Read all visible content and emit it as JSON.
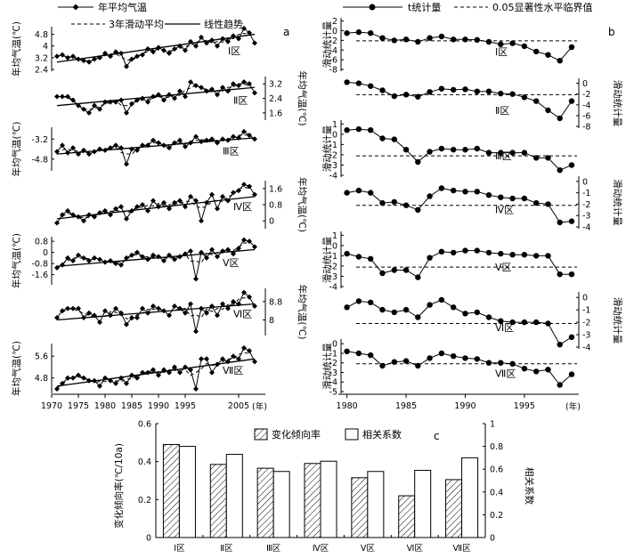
{
  "chart_data": [
    {
      "panel": "a",
      "type": "line",
      "legend": {
        "annual": "年平均气温",
        "moving": "3年滑动平均",
        "trend": "线性趋势"
      },
      "xaxis": {
        "ticks": [
          1970,
          1975,
          1980,
          1985,
          1990,
          1995,
          2005
        ],
        "unit_label": "(年)",
        "range": [
          1970,
          2010
        ]
      },
      "years": [
        1971,
        1972,
        1973,
        1974,
        1975,
        1976,
        1977,
        1978,
        1979,
        1980,
        1981,
        1982,
        1983,
        1984,
        1985,
        1986,
        1987,
        1988,
        1989,
        1990,
        1991,
        1992,
        1993,
        1994,
        1995,
        1996,
        1997,
        1998,
        1999,
        2000,
        2001,
        2002,
        2003,
        2004,
        2005,
        2006,
        2007,
        2008
      ],
      "regions": [
        {
          "name": "Ⅰ区",
          "ylabel": "年均气温(℃)",
          "ylabel_side": "left",
          "yticks": [
            "2.4",
            "3.2",
            "4",
            "4.8"
          ],
          "ylim": [
            2.4,
            5.2
          ],
          "values": [
            3.3,
            3.4,
            3.2,
            3.3,
            3.1,
            3.0,
            2.9,
            3.1,
            3.2,
            3.5,
            3.3,
            3.6,
            3.5,
            2.6,
            3.1,
            3.3,
            3.4,
            3.8,
            3.6,
            3.9,
            3.7,
            3.5,
            3.8,
            4.0,
            3.7,
            4.3,
            4.0,
            4.6,
            4.2,
            4.4,
            4.0,
            4.5,
            4.3,
            4.7,
            4.5,
            5.2,
            4.9,
            4.2
          ],
          "trend": [
            2.9,
            4.8
          ]
        },
        {
          "name": "Ⅱ区",
          "ylabel": "年均气温(℃)",
          "ylabel_side": "right",
          "yticks": [
            "1.6",
            "2.4",
            "3.2"
          ],
          "ylim": [
            1.3,
            3.5
          ],
          "values": [
            2.5,
            2.5,
            2.5,
            2.3,
            2.0,
            1.8,
            1.6,
            2.0,
            1.8,
            2.2,
            2.2,
            2.2,
            2.3,
            1.6,
            2.1,
            2.3,
            2.4,
            2.2,
            2.5,
            2.6,
            2.3,
            2.6,
            2.4,
            2.8,
            2.5,
            3.3,
            3.1,
            3.0,
            2.8,
            2.9,
            2.6,
            3.0,
            2.8,
            3.2,
            3.1,
            3.3,
            3.2,
            2.7
          ],
          "trend": [
            2.0,
            3.0
          ]
        },
        {
          "name": "Ⅲ区",
          "ylabel": "年均气温(℃)",
          "ylabel_side": "left",
          "yticks": [
            "-4.8",
            "-3.2"
          ],
          "ylim": [
            -5.6,
            -2.4
          ],
          "values": [
            -4.2,
            -3.7,
            -4.3,
            -3.9,
            -4.4,
            -4.1,
            -4.4,
            -4.2,
            -4.0,
            -4.1,
            -3.9,
            -3.7,
            -3.9,
            -5.2,
            -4.0,
            -4.1,
            -3.7,
            -3.7,
            -3.3,
            -3.5,
            -3.7,
            -3.9,
            -3.5,
            -3.3,
            -3.8,
            -3.5,
            -3.0,
            -3.4,
            -3.3,
            -3.2,
            -3.5,
            -3.2,
            -3.3,
            -3.0,
            -3.1,
            -2.6,
            -2.9,
            -3.2
          ],
          "trend": [
            -4.4,
            -3.1
          ]
        },
        {
          "name": "Ⅳ区",
          "ylabel": "年均气温(℃)",
          "ylabel_side": "right",
          "yticks": [
            "0",
            "0.8",
            "1.6"
          ],
          "ylim": [
            -0.3,
            1.9
          ],
          "values": [
            -0.1,
            0.3,
            0.5,
            0.3,
            0.2,
            0.0,
            0.3,
            0.2,
            0.4,
            0.5,
            0.3,
            0.6,
            0.7,
            0.1,
            0.5,
            0.7,
            0.8,
            0.5,
            1.0,
            0.7,
            0.9,
            0.6,
            0.9,
            1.0,
            0.7,
            1.2,
            1.0,
            0.0,
            0.9,
            1.3,
            0.6,
            1.2,
            1.0,
            1.4,
            1.5,
            1.8,
            1.7,
            1.3
          ],
          "trend": [
            0.1,
            1.2
          ]
        },
        {
          "name": "Ⅴ区",
          "ylabel": "年均气温(℃)",
          "ylabel_side": "left",
          "yticks": [
            "-1.6",
            "-0.8",
            "0",
            "0.8"
          ],
          "ylim": [
            -2.2,
            1.0
          ],
          "values": [
            -1.1,
            -0.9,
            -0.4,
            -0.6,
            -0.2,
            -0.4,
            -0.6,
            -0.4,
            -0.5,
            -0.7,
            -0.6,
            -0.8,
            -0.9,
            -0.4,
            -0.2,
            0.0,
            -0.3,
            -0.5,
            -0.2,
            -0.3,
            -0.6,
            -0.2,
            -0.5,
            -0.3,
            -0.1,
            0.1,
            -1.9,
            0.0,
            -0.4,
            0.2,
            -0.3,
            0.1,
            0.2,
            -0.1,
            0.3,
            0.9,
            0.8,
            0.4
          ],
          "trend": [
            -1.0,
            0.2
          ]
        },
        {
          "name": "Ⅵ区",
          "ylabel": "年均气温(℃)",
          "ylabel_side": "right",
          "yticks": [
            "8",
            "8.8"
          ],
          "ylim": [
            7.4,
            9.3
          ],
          "values": [
            8.1,
            8.4,
            8.5,
            8.5,
            8.5,
            8.1,
            8.3,
            8.2,
            7.9,
            8.4,
            8.2,
            8.5,
            8.3,
            7.8,
            8.1,
            8.1,
            8.5,
            8.3,
            8.6,
            8.5,
            8.4,
            8.2,
            8.6,
            8.5,
            8.3,
            8.7,
            7.5,
            8.5,
            8.3,
            8.6,
            8.2,
            8.7,
            8.5,
            8.8,
            8.7,
            9.2,
            9.0,
            8.6
          ],
          "trend": [
            8.0,
            8.7
          ]
        },
        {
          "name": "Ⅶ区",
          "ylabel": "年均气温(℃)",
          "ylabel_side": "left",
          "yticks": [
            "4.8",
            "5.6"
          ],
          "ylim": [
            4.3,
            6.0
          ],
          "values": [
            4.4,
            4.6,
            4.8,
            4.8,
            4.9,
            4.8,
            4.7,
            4.7,
            4.5,
            4.8,
            4.7,
            4.6,
            4.8,
            4.6,
            4.9,
            4.8,
            5.0,
            5.0,
            5.1,
            4.9,
            5.1,
            5.0,
            5.2,
            5.0,
            5.2,
            5.1,
            4.4,
            5.5,
            5.5,
            5.0,
            5.3,
            5.5,
            5.4,
            5.6,
            5.5,
            5.9,
            5.8,
            5.4
          ],
          "trend": [
            4.5,
            5.5
          ]
        }
      ]
    },
    {
      "panel": "b",
      "type": "line",
      "legend": {
        "stat": "t统计量",
        "critical": "0.05显著性水平临界值"
      },
      "xaxis": {
        "ticks": [
          1980,
          1985,
          1990,
          1995
        ],
        "unit_label": "(年)",
        "range": [
          1979.5,
          1999.6
        ]
      },
      "years": [
        1980,
        1981,
        1982,
        1983,
        1984,
        1985,
        1986,
        1987,
        1988,
        1989,
        1990,
        1991,
        1992,
        1993,
        1994,
        1995,
        1996,
        1997,
        1998,
        1999
      ],
      "critical_value": -2.1,
      "regions": [
        {
          "name": "Ⅰ区",
          "ylabel": "滑动统计量",
          "ylabel_side": "left",
          "yticks": [
            "2",
            "0",
            "-2",
            "-4",
            "-6",
            "-8"
          ],
          "ylim": [
            -8,
            2.3
          ],
          "values": [
            -0.5,
            -0.3,
            -0.5,
            -1.5,
            -2.0,
            -1.8,
            -2.3,
            -1.5,
            -1.2,
            -1.8,
            -1.8,
            -1.9,
            -2.3,
            -2.8,
            -2.6,
            -3.2,
            -4.3,
            -5.0,
            -6.2,
            -3.4
          ]
        },
        {
          "name": "Ⅱ区",
          "ylabel": "滑动统计量",
          "ylabel_side": "right",
          "yticks": [
            "0",
            "-2",
            "-4",
            "-6",
            "-8"
          ],
          "ylim": [
            -8,
            0.6
          ],
          "values": [
            0.2,
            0.0,
            -0.5,
            -1.3,
            -2.4,
            -2.1,
            -2.5,
            -1.6,
            -1.0,
            -1.2,
            -1.1,
            -1.5,
            -1.5,
            -1.9,
            -2.0,
            -2.6,
            -3.3,
            -5.0,
            -6.5,
            -3.3
          ]
        },
        {
          "name": "Ⅲ区",
          "ylabel": "滑动统计量",
          "ylabel_side": "left",
          "yticks": [
            "1",
            "0",
            "-1",
            "-2",
            "-3",
            "-4"
          ],
          "ylim": [
            -4,
            1.2
          ],
          "values": [
            0.4,
            0.5,
            0.4,
            -0.4,
            -0.5,
            -1.5,
            -2.7,
            -1.7,
            -1.4,
            -1.5,
            -1.5,
            -1.4,
            -1.8,
            -1.8,
            -1.8,
            -1.8,
            -2.3,
            -2.3,
            -3.5,
            -3.0
          ]
        },
        {
          "name": "Ⅳ区",
          "ylabel": "滑动统计量",
          "ylabel_side": "right",
          "yticks": [
            "0",
            "-1",
            "-2",
            "-3",
            "-4"
          ],
          "ylim": [
            -4,
            0.3
          ],
          "values": [
            -1.0,
            -0.8,
            -1.0,
            -1.9,
            -1.8,
            -2.1,
            -2.5,
            -1.3,
            -0.6,
            -0.8,
            -0.9,
            -0.9,
            -1.2,
            -1.4,
            -1.5,
            -1.5,
            -1.9,
            -2.0,
            -3.6,
            -3.5
          ]
        },
        {
          "name": "Ⅴ区",
          "ylabel": "滑动统计量",
          "ylabel_side": "left",
          "yticks": [
            "1",
            "0",
            "-1",
            "-2",
            "-3",
            "-4"
          ],
          "ylim": [
            -4,
            1.2
          ],
          "values": [
            -0.8,
            -1.1,
            -1.3,
            -2.7,
            -2.4,
            -2.4,
            -3.1,
            -1.2,
            -0.6,
            -0.7,
            -0.5,
            -0.5,
            -0.7,
            -0.8,
            -0.9,
            -0.9,
            -1.0,
            -1.0,
            -2.8,
            -2.8
          ]
        },
        {
          "name": "Ⅵ区",
          "ylabel": "滑动统计量",
          "ylabel_side": "right",
          "yticks": [
            "0",
            "-1",
            "-2",
            "-3",
            "-4"
          ],
          "ylim": [
            -4,
            0.3
          ],
          "values": [
            -0.8,
            -0.3,
            -0.4,
            -1.0,
            -1.2,
            -1.0,
            -1.6,
            -0.6,
            -0.2,
            -0.8,
            -1.3,
            -1.2,
            -1.6,
            -1.9,
            -2.0,
            -2.0,
            -2.0,
            -2.1,
            -3.8,
            -3.2
          ]
        },
        {
          "name": "Ⅶ区",
          "ylabel": "滑动统计量",
          "ylabel_side": "left",
          "yticks": [
            "0",
            "-1",
            "-2",
            "-3",
            "-4",
            "-5"
          ],
          "ylim": [
            -5,
            0.3
          ],
          "values": [
            -0.8,
            -1.0,
            -1.2,
            -2.3,
            -1.9,
            -1.8,
            -2.3,
            -1.5,
            -1.0,
            -1.3,
            -1.5,
            -1.6,
            -2.0,
            -2.0,
            -2.1,
            -2.6,
            -2.9,
            -2.7,
            -4.3,
            -3.2
          ]
        }
      ]
    },
    {
      "panel": "c",
      "type": "bar",
      "categories": [
        "Ⅰ区",
        "Ⅱ区",
        "Ⅲ区",
        "Ⅳ区",
        "Ⅴ区",
        "Ⅵ区",
        "Ⅶ区"
      ],
      "series": [
        {
          "name": "变化倾向率",
          "axis": "left",
          "pattern": "hatched",
          "values": [
            0.49,
            0.385,
            0.365,
            0.39,
            0.315,
            0.22,
            0.305
          ]
        },
        {
          "name": "相关系数",
          "axis": "right",
          "pattern": "open",
          "values": [
            0.8,
            0.73,
            0.58,
            0.67,
            0.58,
            0.59,
            0.7
          ]
        }
      ],
      "ylabel_left": "变化倾向率(℃/10a)",
      "ylabel_right": "相关系数",
      "ylim_left": [
        0,
        0.6
      ],
      "ylim_right": [
        0,
        1.0
      ],
      "yticks_left": [
        "0",
        "0.2",
        "0.4",
        "0.6"
      ],
      "yticks_right": [
        "0",
        "0.2",
        "0.4",
        "0.6",
        "0.8",
        "1"
      ]
    }
  ]
}
